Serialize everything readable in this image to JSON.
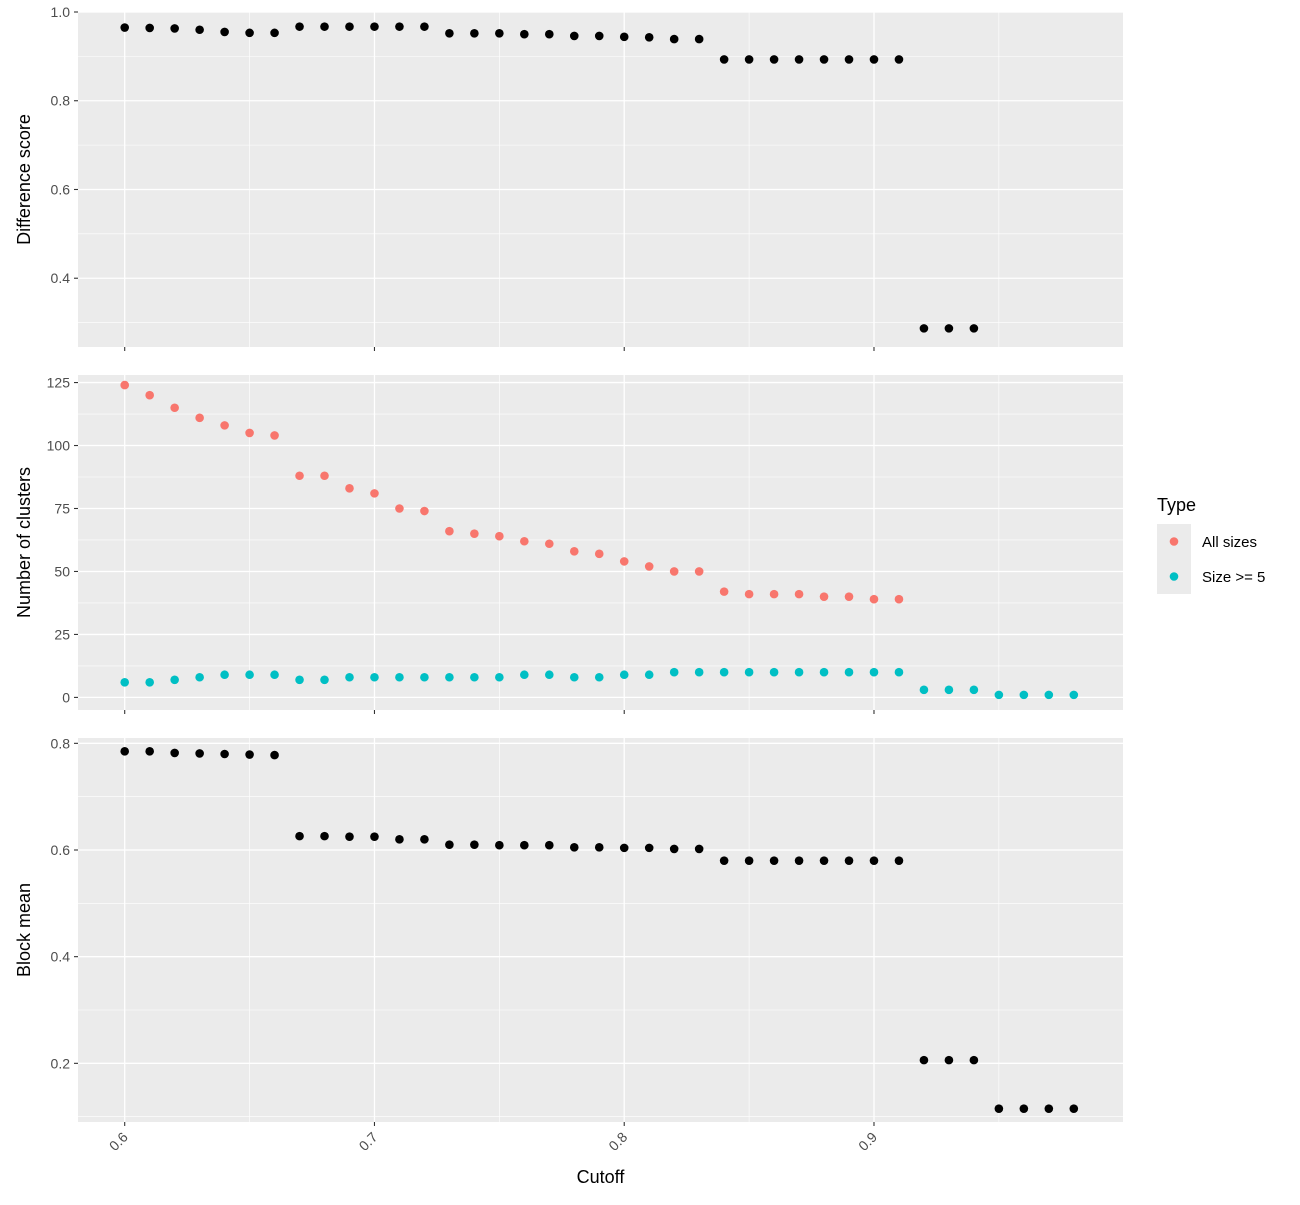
{
  "chart_data": [
    {
      "type": "scatter",
      "ylabel": "Difference score",
      "ylim": [
        0.245,
        1.0
      ],
      "yticks": [
        0.4,
        0.6,
        0.8,
        1.0
      ],
      "ytick_labels": [
        "0.4",
        "0.6",
        "0.8",
        "1.0"
      ],
      "grid": true,
      "series": [
        {
          "color": "#000000",
          "x": [
            0.6,
            0.61,
            0.62,
            0.63,
            0.64,
            0.65,
            0.66,
            0.67,
            0.68,
            0.69,
            0.7,
            0.71,
            0.72,
            0.73,
            0.74,
            0.75,
            0.76,
            0.77,
            0.78,
            0.79,
            0.8,
            0.81,
            0.82,
            0.83,
            0.84,
            0.85,
            0.86,
            0.87,
            0.88,
            0.89,
            0.9,
            0.91,
            0.92,
            0.93,
            0.94
          ],
          "y": [
            0.965,
            0.964,
            0.963,
            0.96,
            0.955,
            0.953,
            0.953,
            0.967,
            0.967,
            0.967,
            0.967,
            0.967,
            0.967,
            0.952,
            0.952,
            0.952,
            0.95,
            0.95,
            0.946,
            0.946,
            0.944,
            0.943,
            0.939,
            0.939,
            0.893,
            0.893,
            0.893,
            0.893,
            0.893,
            0.893,
            0.893,
            0.893,
            0.287,
            0.287,
            0.287
          ]
        }
      ]
    },
    {
      "type": "scatter",
      "ylabel": "Number of clusters",
      "ylim": [
        -5,
        128
      ],
      "yticks": [
        0,
        25,
        50,
        75,
        100,
        125
      ],
      "ytick_labels": [
        "0",
        "25",
        "50",
        "75",
        "100",
        "125"
      ],
      "grid": true,
      "legend": {
        "title": "Type",
        "position": "right",
        "entries": [
          {
            "label": "All sizes",
            "color": "#F8766D"
          },
          {
            "label": "Size >= 5",
            "color": "#00BFC4"
          }
        ]
      },
      "series": [
        {
          "name": "All sizes",
          "color": "#F8766D",
          "x": [
            0.6,
            0.61,
            0.62,
            0.63,
            0.64,
            0.65,
            0.66,
            0.67,
            0.68,
            0.69,
            0.7,
            0.71,
            0.72,
            0.73,
            0.74,
            0.75,
            0.76,
            0.77,
            0.78,
            0.79,
            0.8,
            0.81,
            0.82,
            0.83,
            0.84,
            0.85,
            0.86,
            0.87,
            0.88,
            0.89,
            0.9,
            0.91
          ],
          "y": [
            124,
            120,
            115,
            111,
            108,
            105,
            104,
            88,
            88,
            83,
            81,
            75,
            74,
            66,
            65,
            64,
            62,
            61,
            58,
            57,
            54,
            52,
            50,
            50,
            42,
            41,
            41,
            41,
            40,
            40,
            39,
            39
          ]
        },
        {
          "name": "Size >= 5",
          "color": "#00BFC4",
          "x": [
            0.6,
            0.61,
            0.62,
            0.63,
            0.64,
            0.65,
            0.66,
            0.67,
            0.68,
            0.69,
            0.7,
            0.71,
            0.72,
            0.73,
            0.74,
            0.75,
            0.76,
            0.77,
            0.78,
            0.79,
            0.8,
            0.81,
            0.82,
            0.83,
            0.84,
            0.85,
            0.86,
            0.87,
            0.88,
            0.89,
            0.9,
            0.91,
            0.92,
            0.93,
            0.94,
            0.95,
            0.96,
            0.97,
            0.98
          ],
          "y": [
            6,
            6,
            7,
            8,
            9,
            9,
            9,
            7,
            7,
            8,
            8,
            8,
            8,
            8,
            8,
            8,
            9,
            9,
            8,
            8,
            9,
            9,
            10,
            10,
            10,
            10,
            10,
            10,
            10,
            10,
            10,
            10,
            3,
            3,
            3,
            1,
            1,
            1,
            1
          ]
        }
      ]
    },
    {
      "type": "scatter",
      "ylabel": "Block mean",
      "xlabel": "Cutoff",
      "ylim": [
        0.09,
        0.81
      ],
      "yticks": [
        0.2,
        0.4,
        0.6,
        0.8
      ],
      "ytick_labels": [
        "0.2",
        "0.4",
        "0.6",
        "0.8"
      ],
      "grid": true,
      "series": [
        {
          "color": "#000000",
          "x": [
            0.6,
            0.61,
            0.62,
            0.63,
            0.64,
            0.65,
            0.66,
            0.67,
            0.68,
            0.69,
            0.7,
            0.71,
            0.72,
            0.73,
            0.74,
            0.75,
            0.76,
            0.77,
            0.78,
            0.79,
            0.8,
            0.81,
            0.82,
            0.83,
            0.84,
            0.85,
            0.86,
            0.87,
            0.88,
            0.89,
            0.9,
            0.91,
            0.92,
            0.93,
            0.94,
            0.95,
            0.96,
            0.97,
            0.98
          ],
          "y": [
            0.785,
            0.785,
            0.782,
            0.781,
            0.78,
            0.779,
            0.778,
            0.626,
            0.626,
            0.625,
            0.625,
            0.62,
            0.62,
            0.61,
            0.61,
            0.609,
            0.609,
            0.609,
            0.605,
            0.605,
            0.604,
            0.604,
            0.602,
            0.602,
            0.58,
            0.58,
            0.58,
            0.58,
            0.58,
            0.58,
            0.58,
            0.58,
            0.206,
            0.206,
            0.206,
            0.115,
            0.115,
            0.115,
            0.115
          ]
        }
      ]
    }
  ],
  "shared_x": {
    "label": "Cutoff",
    "xlim": [
      0.5813,
      0.9997
    ],
    "ticks": [
      0.6,
      0.7,
      0.8,
      0.9
    ],
    "tick_labels": [
      "0.6",
      "0.7",
      "0.8",
      "0.9"
    ],
    "tick_label_rotation": "45 degrees"
  },
  "theme": {
    "panel_background": "#EBEBEB",
    "major_grid": "#FFFFFF",
    "axis_text": "#4D4D4D",
    "title_text": "#000000"
  }
}
